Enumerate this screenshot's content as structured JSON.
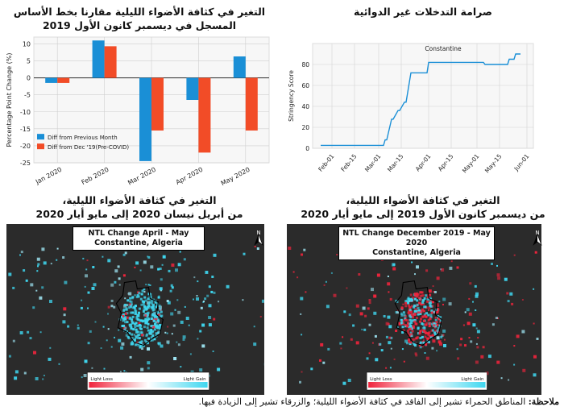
{
  "titles": {
    "bar_chart": "التغير في كثافة الأضواء الليلية مقارنا بخط الأساس المسجل في ديسمبر كانون الأول 2019",
    "stringency": "صرامة التدخلات غير الدوائية",
    "map_left_line1": "التغير في كثافة الأضواء الليلية،",
    "map_left_line2": "من أبريل نيسان 2020 إلى مايو أيار 2020",
    "map_right_line1": "التغير في كثافة الأضواء الليلية،",
    "map_right_line2": "من ديسمبر كانون الأول 2019 إلى مايو أيار 2020"
  },
  "maps": {
    "left": {
      "label_line1": "NTL Change April - May",
      "label_line2": "Constantine, Algeria",
      "legend_loss": "Light Loss",
      "legend_gain": "Light Gain"
    },
    "right": {
      "label_line1": "NTL Change December 2019 - May 2020",
      "label_line2": "Constantine, Algeria",
      "legend_loss": "Light Loss",
      "legend_gain": "Light Gain"
    }
  },
  "note": {
    "label": "ملاحظة:",
    "text": " المناطق الحمراء تشير إلى الفاقد في كثافة الأضواء الليلية؛ والزرقاء تشير إلى الزيادة فيها."
  },
  "colors": {
    "blue_series": "#1a8fd6",
    "red_series": "#f24c27",
    "line": "#1a8fd6",
    "gain": "#3fd7f0",
    "loss": "#f0243c",
    "map_bg": "#2b2b2b"
  },
  "chart_data": [
    {
      "type": "bar",
      "categories": [
        "Jan 2020",
        "Feb 2020",
        "Mar 2020",
        "Apr 2020",
        "May 2020"
      ],
      "series": [
        {
          "name": "Diff from Previous Month",
          "values": [
            -1.5,
            11,
            -24.5,
            -6.5,
            6.3
          ]
        },
        {
          "name": "Diff from Dec '19(Pre-COVID)",
          "values": [
            -1.5,
            9.3,
            -15.5,
            -22,
            -15.5
          ]
        }
      ],
      "ylabel": "Percentage Point Change (%)",
      "xlabel": "",
      "ylim": [
        -25,
        12
      ],
      "yticks": [
        10,
        5,
        0,
        -5,
        -10,
        -15,
        -20,
        -25
      ],
      "legend_position": "lower-left",
      "grid": true
    },
    {
      "type": "line",
      "series": [
        {
          "name": "Constantine",
          "x": [
            "2020-01-25",
            "2020-02-01",
            "2020-02-15",
            "2020-03-01",
            "2020-03-04",
            "2020-03-05",
            "2020-03-06",
            "2020-03-09",
            "2020-03-10",
            "2020-03-13",
            "2020-03-14",
            "2020-03-17",
            "2020-03-18",
            "2020-03-21",
            "2020-03-22",
            "2020-03-31",
            "2020-04-01",
            "2020-05-05",
            "2020-05-06",
            "2020-05-20",
            "2020-05-21",
            "2020-05-24",
            "2020-05-25",
            "2020-05-28"
          ],
          "y": [
            2.8,
            2.8,
            2.8,
            2.8,
            2.8,
            8,
            8,
            27.8,
            27.8,
            36,
            36,
            44,
            44,
            72,
            72,
            72,
            82,
            82,
            80,
            80,
            85,
            85,
            90,
            90
          ]
        }
      ],
      "ylabel": "Stringency Score",
      "xlabel": "",
      "xticks": [
        "Feb-01",
        "Feb-15",
        "Mar-01",
        "Mar-15",
        "Apr-01",
        "Apr-15",
        "May-01",
        "May-15",
        "Jun-01"
      ],
      "yticks": [
        0,
        20,
        40,
        60,
        80
      ],
      "ylim": [
        0,
        100
      ],
      "annotations": [
        "Constantine"
      ],
      "grid": true
    }
  ]
}
